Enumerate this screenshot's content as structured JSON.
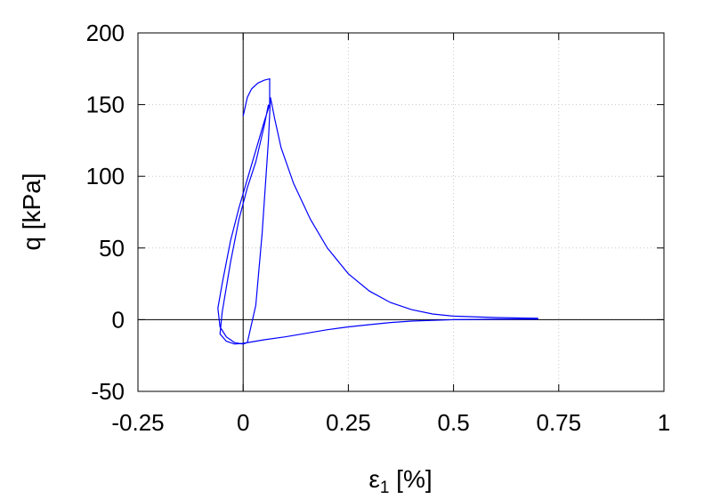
{
  "chart_data": {
    "type": "line",
    "xlabel_main": "ε",
    "xlabel_sub": "1",
    "xlabel_rest": " [%]",
    "ylabel": "q [kPa]",
    "xlim": [
      -0.25,
      1
    ],
    "ylim": [
      -50,
      200
    ],
    "xticks": [
      -0.25,
      0,
      0.25,
      0.5,
      0.75,
      1
    ],
    "xtick_labels": [
      "-0.25",
      "0",
      "0.25",
      "0.5",
      "0.75",
      "1"
    ],
    "yticks": [
      -50,
      0,
      50,
      100,
      150,
      200
    ],
    "ytick_labels": [
      "-50",
      "0",
      "50",
      "100",
      "150",
      "200"
    ],
    "grid": true,
    "zero_lines": true,
    "series_color": "#0000ff",
    "series": [
      {
        "points": [
          [
            0.0,
            142
          ],
          [
            0.01,
            155
          ],
          [
            0.02,
            161
          ],
          [
            0.035,
            165
          ],
          [
            0.05,
            167
          ],
          [
            0.063,
            168
          ],
          [
            0.063,
            150
          ],
          [
            0.05,
            138
          ],
          [
            0.03,
            118
          ],
          [
            0.01,
            98
          ],
          [
            -0.01,
            78
          ],
          [
            -0.03,
            55
          ],
          [
            -0.05,
            25
          ],
          [
            -0.06,
            8
          ],
          [
            -0.055,
            -5
          ],
          [
            -0.04,
            -12
          ],
          [
            -0.02,
            -16
          ],
          [
            0.0,
            -17
          ],
          [
            0.01,
            -16
          ],
          [
            0.03,
            10
          ],
          [
            0.045,
            60
          ],
          [
            0.06,
            125
          ],
          [
            0.065,
            155
          ],
          [
            0.075,
            140
          ],
          [
            0.09,
            120
          ],
          [
            0.12,
            95
          ],
          [
            0.16,
            70
          ],
          [
            0.2,
            50
          ],
          [
            0.25,
            32
          ],
          [
            0.3,
            20
          ],
          [
            0.35,
            12
          ],
          [
            0.4,
            7
          ],
          [
            0.45,
            4
          ],
          [
            0.5,
            2.5
          ],
          [
            0.6,
            1.5
          ],
          [
            0.7,
            1
          ],
          [
            0.7,
            0.5
          ],
          [
            0.6,
            0.3
          ],
          [
            0.5,
            0
          ],
          [
            0.45,
            -0.5
          ],
          [
            0.4,
            -1
          ],
          [
            0.35,
            -2
          ],
          [
            0.3,
            -3.5
          ],
          [
            0.25,
            -5
          ],
          [
            0.2,
            -7
          ],
          [
            0.15,
            -9.5
          ],
          [
            0.1,
            -12
          ],
          [
            0.05,
            -14
          ],
          [
            0.0,
            -16.5
          ],
          [
            -0.02,
            -17
          ],
          [
            -0.04,
            -15
          ],
          [
            -0.055,
            -10
          ],
          [
            -0.05,
            5
          ],
          [
            -0.03,
            40
          ],
          [
            -0.01,
            70
          ],
          [
            0.01,
            92
          ],
          [
            0.03,
            110
          ],
          [
            0.05,
            135
          ],
          [
            0.06,
            150
          ]
        ]
      }
    ]
  }
}
